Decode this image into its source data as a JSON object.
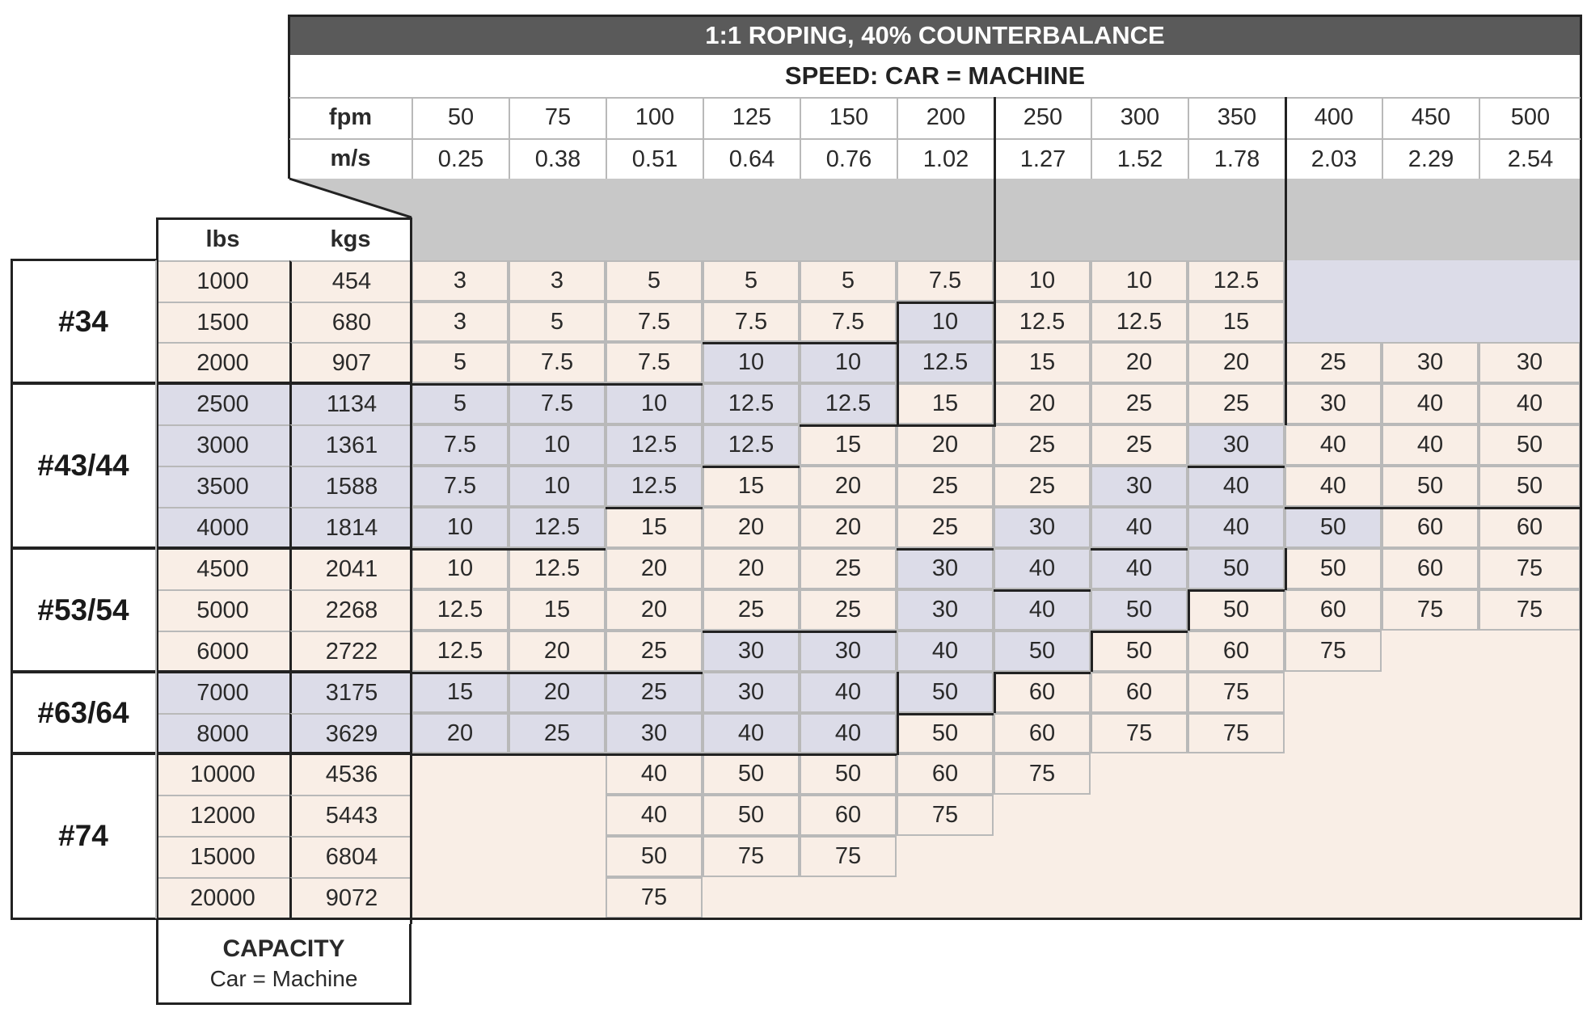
{
  "header": {
    "title": "1:1 ROPING, 40% COUNTERBALANCE",
    "subtitle": "SPEED: CAR = MACHINE",
    "fpm_label": "fpm",
    "ms_label": "m/s",
    "lbs_label": "lbs",
    "kgs_label": "kgs"
  },
  "speeds": [
    {
      "fpm": "50",
      "ms": "0.25"
    },
    {
      "fpm": "75",
      "ms": "0.38"
    },
    {
      "fpm": "100",
      "ms": "0.51"
    },
    {
      "fpm": "125",
      "ms": "0.64"
    },
    {
      "fpm": "150",
      "ms": "0.76"
    },
    {
      "fpm": "200",
      "ms": "1.02"
    },
    {
      "fpm": "250",
      "ms": "1.27"
    },
    {
      "fpm": "300",
      "ms": "1.52"
    },
    {
      "fpm": "350",
      "ms": "1.78"
    },
    {
      "fpm": "400",
      "ms": "2.03"
    },
    {
      "fpm": "450",
      "ms": "2.29"
    },
    {
      "fpm": "500",
      "ms": "2.54"
    }
  ],
  "groups": [
    {
      "label": "#34",
      "rows": 3
    },
    {
      "label": "#43/44",
      "rows": 4
    },
    {
      "label": "#53/54",
      "rows": 3
    },
    {
      "label": "#63/64",
      "rows": 2
    },
    {
      "label": "#74",
      "rows": 4
    }
  ],
  "rows": [
    {
      "lbs": "1000",
      "kgs": "454",
      "vals": [
        "3",
        "3",
        "5",
        "5",
        "5",
        "7.5",
        "10",
        "10",
        "12.5",
        "",
        "",
        ""
      ]
    },
    {
      "lbs": "1500",
      "kgs": "680",
      "vals": [
        "3",
        "5",
        "7.5",
        "7.5",
        "7.5",
        "10",
        "12.5",
        "12.5",
        "15",
        "",
        "",
        ""
      ]
    },
    {
      "lbs": "2000",
      "kgs": "907",
      "vals": [
        "5",
        "7.5",
        "7.5",
        "10",
        "10",
        "12.5",
        "15",
        "20",
        "20",
        "25",
        "30",
        "30"
      ]
    },
    {
      "lbs": "2500",
      "kgs": "1134",
      "vals": [
        "5",
        "7.5",
        "10",
        "12.5",
        "12.5",
        "15",
        "20",
        "25",
        "25",
        "30",
        "40",
        "40"
      ]
    },
    {
      "lbs": "3000",
      "kgs": "1361",
      "vals": [
        "7.5",
        "10",
        "12.5",
        "12.5",
        "15",
        "20",
        "25",
        "25",
        "30",
        "40",
        "40",
        "50"
      ]
    },
    {
      "lbs": "3500",
      "kgs": "1588",
      "vals": [
        "7.5",
        "10",
        "12.5",
        "15",
        "20",
        "25",
        "25",
        "30",
        "40",
        "40",
        "50",
        "50"
      ]
    },
    {
      "lbs": "4000",
      "kgs": "1814",
      "vals": [
        "10",
        "12.5",
        "15",
        "20",
        "20",
        "25",
        "30",
        "40",
        "40",
        "50",
        "60",
        "60"
      ]
    },
    {
      "lbs": "4500",
      "kgs": "2041",
      "vals": [
        "10",
        "12.5",
        "20",
        "20",
        "25",
        "30",
        "40",
        "40",
        "50",
        "50",
        "60",
        "75"
      ]
    },
    {
      "lbs": "5000",
      "kgs": "2268",
      "vals": [
        "12.5",
        "15",
        "20",
        "25",
        "25",
        "30",
        "40",
        "50",
        "50",
        "60",
        "75",
        "75"
      ]
    },
    {
      "lbs": "6000",
      "kgs": "2722",
      "vals": [
        "12.5",
        "20",
        "25",
        "30",
        "30",
        "40",
        "50",
        "50",
        "60",
        "75",
        "",
        ""
      ]
    },
    {
      "lbs": "7000",
      "kgs": "3175",
      "vals": [
        "15",
        "20",
        "25",
        "30",
        "40",
        "50",
        "60",
        "60",
        "75",
        "",
        "",
        ""
      ]
    },
    {
      "lbs": "8000",
      "kgs": "3629",
      "vals": [
        "20",
        "25",
        "30",
        "40",
        "40",
        "50",
        "60",
        "75",
        "75",
        "",
        "",
        ""
      ]
    },
    {
      "lbs": "10000",
      "kgs": "4536",
      "vals": [
        "",
        "",
        "40",
        "50",
        "50",
        "60",
        "75",
        "",
        "",
        "",
        "",
        ""
      ]
    },
    {
      "lbs": "12000",
      "kgs": "5443",
      "vals": [
        "",
        "",
        "40",
        "50",
        "60",
        "75",
        "",
        "",
        "",
        "",
        "",
        ""
      ]
    },
    {
      "lbs": "15000",
      "kgs": "6804",
      "vals": [
        "",
        "",
        "50",
        "75",
        "75",
        "",
        "",
        "",
        "",
        "",
        "",
        ""
      ]
    },
    {
      "lbs": "20000",
      "kgs": "9072",
      "vals": [
        "",
        "",
        "75",
        "",
        "",
        "",
        "",
        "",
        "",
        "",
        "",
        ""
      ]
    }
  ],
  "footer": {
    "title": "CAPACITY",
    "subtitle": "Car = Machine"
  },
  "colors": {
    "title_bar": "#5a5a5a",
    "gray_band": "#c8c8c8",
    "peach": "#f9eee6",
    "lavender": "#dcdce8",
    "grid": "#b9b9b9",
    "border": "#222222"
  }
}
